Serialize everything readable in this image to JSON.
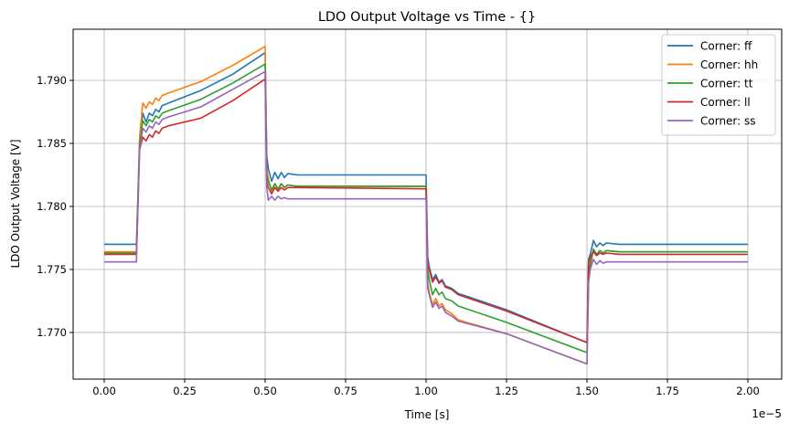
{
  "chart_data": {
    "type": "line",
    "title": "LDO Output Voltage vs Time - {}",
    "xlabel": "Time [s]",
    "ylabel": "LDO Output Voltage [V]",
    "x_offset_label": "1e−5",
    "xlim": [
      -0.0966,
      2.105
    ],
    "ylim": [
      1.7663,
      1.79406
    ],
    "xticks": [
      0,
      0.25,
      0.5,
      0.75,
      1.0,
      1.25,
      1.5,
      1.75,
      2.0
    ],
    "xtick_labels": [
      "0.00",
      "0.25",
      "0.50",
      "0.75",
      "1.00",
      "1.25",
      "1.50",
      "1.75",
      "2.00"
    ],
    "yticks": [
      1.77,
      1.775,
      1.78,
      1.785,
      1.79
    ],
    "ytick_labels": [
      "1.770",
      "1.775",
      "1.780",
      "1.785",
      "1.790"
    ],
    "grid": true,
    "legend_position": "top-right",
    "x": [
      0,
      0.1,
      0.11,
      0.12,
      0.13,
      0.14,
      0.15,
      0.16,
      0.17,
      0.18,
      0.2,
      0.3,
      0.4,
      0.5,
      0.505,
      0.51,
      0.52,
      0.53,
      0.54,
      0.55,
      0.56,
      0.57,
      0.6,
      1.0,
      1.005,
      1.01,
      1.02,
      1.03,
      1.04,
      1.05,
      1.06,
      1.08,
      1.1,
      1.25,
      1.5,
      1.505,
      1.51,
      1.52,
      1.53,
      1.54,
      1.55,
      1.56,
      1.6,
      2.0
    ],
    "series": [
      {
        "name": "Corner: ff",
        "color": "#1f77b4",
        "values": [
          1.777,
          1.777,
          1.785,
          1.7874,
          1.7867,
          1.7874,
          1.7872,
          1.7877,
          1.7875,
          1.788,
          1.7882,
          1.7892,
          1.7905,
          1.7922,
          1.784,
          1.783,
          1.782,
          1.7827,
          1.7822,
          1.7827,
          1.7823,
          1.7826,
          1.7825,
          1.7825,
          1.776,
          1.7752,
          1.7742,
          1.7746,
          1.774,
          1.7742,
          1.7737,
          1.7735,
          1.7731,
          1.7718,
          1.7692,
          1.7758,
          1.7762,
          1.7773,
          1.7768,
          1.7771,
          1.7769,
          1.7771,
          1.777,
          1.777
        ]
      },
      {
        "name": "Corner: hh",
        "color": "#ff7f0e",
        "values": [
          1.7764,
          1.7764,
          1.7855,
          1.7882,
          1.7878,
          1.7883,
          1.7881,
          1.7886,
          1.7884,
          1.7888,
          1.789,
          1.7899,
          1.7912,
          1.7927,
          1.783,
          1.7822,
          1.7812,
          1.7818,
          1.7813,
          1.7818,
          1.7815,
          1.7817,
          1.7816,
          1.7816,
          1.774,
          1.7732,
          1.7722,
          1.7727,
          1.7721,
          1.7723,
          1.7718,
          1.7715,
          1.771,
          1.7699,
          1.7675,
          1.774,
          1.7752,
          1.7766,
          1.7762,
          1.7765,
          1.7763,
          1.7765,
          1.7764,
          1.7764
        ]
      },
      {
        "name": "Corner: tt",
        "color": "#2ca02c",
        "values": [
          1.7763,
          1.7763,
          1.785,
          1.7868,
          1.7864,
          1.7869,
          1.7867,
          1.7872,
          1.787,
          1.7874,
          1.7876,
          1.7885,
          1.7898,
          1.7913,
          1.7825,
          1.782,
          1.7813,
          1.7818,
          1.7814,
          1.7818,
          1.7815,
          1.7817,
          1.7816,
          1.7816,
          1.775,
          1.7742,
          1.773,
          1.7735,
          1.773,
          1.7732,
          1.7727,
          1.7725,
          1.7721,
          1.7708,
          1.7684,
          1.7748,
          1.7755,
          1.7766,
          1.7762,
          1.7765,
          1.7763,
          1.7765,
          1.7764,
          1.7764
        ]
      },
      {
        "name": "Corner: ll",
        "color": "#d62728",
        "values": [
          1.7762,
          1.7762,
          1.7845,
          1.7855,
          1.7852,
          1.7857,
          1.7855,
          1.786,
          1.7858,
          1.7862,
          1.7864,
          1.787,
          1.7884,
          1.7901,
          1.782,
          1.7815,
          1.781,
          1.7815,
          1.7812,
          1.7815,
          1.7813,
          1.7815,
          1.7815,
          1.7814,
          1.7755,
          1.775,
          1.774,
          1.7744,
          1.7739,
          1.7741,
          1.7736,
          1.7734,
          1.773,
          1.7717,
          1.7692,
          1.7755,
          1.776,
          1.7764,
          1.7761,
          1.7763,
          1.7762,
          1.7763,
          1.7762,
          1.7762
        ]
      },
      {
        "name": "Corner: ss",
        "color": "#9467bd",
        "values": [
          1.7756,
          1.7756,
          1.7845,
          1.7862,
          1.7859,
          1.7864,
          1.7862,
          1.7867,
          1.7865,
          1.7869,
          1.7871,
          1.7879,
          1.7893,
          1.7907,
          1.7815,
          1.7805,
          1.7808,
          1.7805,
          1.7808,
          1.7806,
          1.7807,
          1.7806,
          1.7806,
          1.7806,
          1.7735,
          1.773,
          1.772,
          1.7724,
          1.7719,
          1.7721,
          1.7716,
          1.7713,
          1.7709,
          1.7699,
          1.7675,
          1.774,
          1.775,
          1.7758,
          1.7754,
          1.7757,
          1.7755,
          1.7756,
          1.7756,
          1.7756
        ]
      }
    ]
  }
}
